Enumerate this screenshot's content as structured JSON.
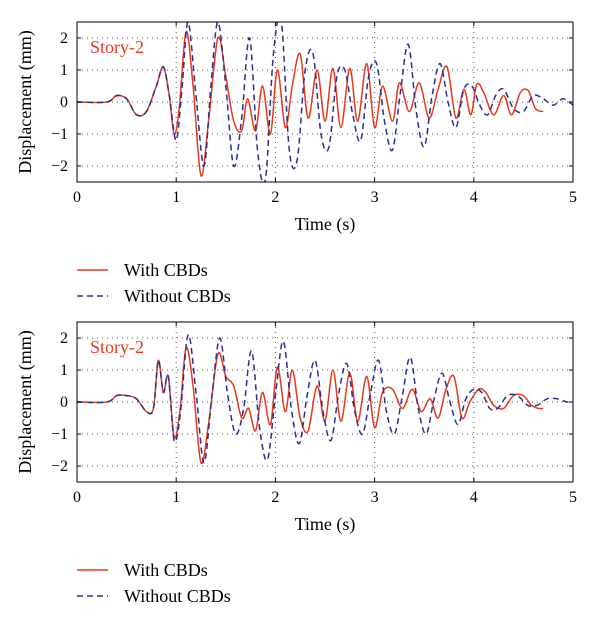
{
  "colors": {
    "with": "#e8381b",
    "without": "#2b2f8f",
    "grid": "#555555"
  },
  "chart_data": [
    {
      "type": "line",
      "xlabel": "Time (s)",
      "ylabel": "Displacement (mm)",
      "annotation": "Story-2",
      "xlim": [
        0,
        5
      ],
      "ylim": [
        -2.5,
        2.5
      ],
      "xticks": [
        "0",
        "1",
        "2",
        "3",
        "4",
        "5"
      ],
      "yticks": [
        "−2",
        "−1",
        "0",
        "1",
        "2"
      ],
      "grid": true,
      "legend": "below",
      "series": [
        {
          "name": "With CBDs",
          "style": "solid",
          "x": [
            0,
            0.3,
            0.4,
            0.5,
            0.6,
            0.7,
            0.8,
            0.87,
            0.93,
            0.98,
            1.03,
            1.1,
            1.17,
            1.25,
            1.33,
            1.42,
            1.5,
            1.58,
            1.66,
            1.72,
            1.8,
            1.87,
            1.95,
            2.02,
            2.1,
            2.17,
            2.25,
            2.33,
            2.42,
            2.5,
            2.58,
            2.66,
            2.75,
            2.83,
            2.92,
            3.0,
            3.08,
            3.18,
            3.25,
            3.35,
            3.45,
            3.55,
            3.64,
            3.73,
            3.82,
            3.9,
            3.97,
            4.03,
            4.1,
            4.2,
            4.3,
            4.38,
            4.47,
            4.55,
            4.62,
            4.7
          ],
          "y": [
            0,
            0,
            0.2,
            0.1,
            -0.4,
            -0.3,
            0.5,
            1.1,
            0.2,
            -1.0,
            -0.2,
            2.2,
            0.5,
            -2.3,
            -0.5,
            2.0,
            0.8,
            -0.6,
            -0.9,
            0.1,
            -0.9,
            0.5,
            -1.0,
            1.0,
            -0.8,
            0.5,
            1.5,
            -0.5,
            1.0,
            -0.6,
            1.05,
            -0.8,
            1.05,
            -0.6,
            1.2,
            -0.8,
            0.5,
            -0.6,
            0.6,
            -0.3,
            0.6,
            -0.5,
            0.4,
            1.1,
            -0.5,
            0.4,
            -0.4,
            0.55,
            0.3,
            -0.4,
            0.2,
            -0.4,
            0.3,
            0.35,
            -0.2,
            -0.3
          ]
        },
        {
          "name": "Without CBDs",
          "style": "dashed",
          "x": [
            0,
            0.3,
            0.4,
            0.5,
            0.6,
            0.7,
            0.8,
            0.87,
            0.93,
            1.0,
            1.06,
            1.12,
            1.2,
            1.28,
            1.35,
            1.42,
            1.5,
            1.58,
            1.66,
            1.74,
            1.82,
            1.9,
            1.98,
            2.06,
            2.14,
            2.22,
            2.3,
            2.38,
            2.46,
            2.54,
            2.62,
            2.7,
            2.78,
            2.86,
            2.94,
            3.02,
            3.1,
            3.18,
            3.26,
            3.34,
            3.42,
            3.5,
            3.58,
            3.66,
            3.74,
            3.82,
            3.9,
            3.98,
            4.06,
            4.14,
            4.22,
            4.3,
            4.4,
            4.5,
            4.6,
            4.7,
            4.8,
            4.9,
            5.0
          ],
          "y": [
            0,
            0,
            0.2,
            0.1,
            -0.4,
            -0.3,
            0.5,
            1.1,
            0.2,
            -1.2,
            0.5,
            2.5,
            0.2,
            -2.0,
            0.5,
            2.5,
            0.5,
            -2.0,
            -0.5,
            2.0,
            -1.5,
            -2.4,
            1.5,
            2.5,
            -1.5,
            -1.8,
            1.0,
            1.5,
            -1.0,
            -1.4,
            0.8,
            1.0,
            -0.4,
            -1.2,
            0.8,
            1.2,
            -0.6,
            -1.5,
            0.3,
            1.8,
            -0.3,
            -1.4,
            0.2,
            1.2,
            0.0,
            -0.8,
            0.4,
            0.5,
            -0.1,
            -0.4,
            0.2,
            0.4,
            -0.2,
            -0.3,
            0.2,
            0.1,
            -0.1,
            0.1,
            -0.1
          ]
        }
      ]
    },
    {
      "type": "line",
      "xlabel": "Time (s)",
      "ylabel": "Displacement (mm)",
      "annotation": "Story-2",
      "xlim": [
        0,
        5
      ],
      "ylim": [
        -2.5,
        2.5
      ],
      "xticks": [
        "0",
        "1",
        "2",
        "3",
        "4",
        "5"
      ],
      "yticks": [
        "−2",
        "−1",
        "0",
        "1",
        "2"
      ],
      "grid": true,
      "legend": "below",
      "series": [
        {
          "name": "With CBDs",
          "style": "solid",
          "x": [
            0,
            0.3,
            0.4,
            0.5,
            0.6,
            0.7,
            0.77,
            0.82,
            0.87,
            0.92,
            0.98,
            1.04,
            1.1,
            1.17,
            1.25,
            1.33,
            1.42,
            1.5,
            1.58,
            1.66,
            1.73,
            1.8,
            1.87,
            1.95,
            2.02,
            2.1,
            2.17,
            2.25,
            2.33,
            2.42,
            2.5,
            2.58,
            2.66,
            2.75,
            2.83,
            2.92,
            3.0,
            3.08,
            3.18,
            3.28,
            3.38,
            3.47,
            3.56,
            3.64,
            3.72,
            3.8,
            3.88,
            3.96,
            4.05,
            4.12,
            4.2,
            4.3,
            4.4,
            4.5,
            4.58,
            4.65,
            4.7
          ],
          "y": [
            0,
            0,
            0.2,
            0.2,
            0.1,
            -0.3,
            -0.2,
            1.3,
            0.3,
            0.8,
            -1.1,
            -0.2,
            1.7,
            0.5,
            -1.9,
            -0.6,
            1.5,
            0.8,
            0.5,
            -0.5,
            -0.2,
            -0.9,
            0.3,
            -0.7,
            1.1,
            -0.3,
            1.0,
            -0.5,
            -0.9,
            0.5,
            -0.6,
            1.0,
            -0.6,
            0.9,
            -0.6,
            0.8,
            -0.8,
            0.3,
            0.4,
            -0.2,
            0.4,
            -0.3,
            0.1,
            -0.5,
            0.4,
            0.8,
            -0.5,
            0.0,
            0.4,
            0.3,
            -0.1,
            -0.2,
            0.2,
            0.2,
            -0.1,
            -0.2,
            -0.2
          ]
        },
        {
          "name": "Without CBDs",
          "style": "dashed",
          "x": [
            0,
            0.3,
            0.4,
            0.5,
            0.6,
            0.7,
            0.77,
            0.82,
            0.87,
            0.92,
            0.98,
            1.04,
            1.12,
            1.2,
            1.28,
            1.36,
            1.44,
            1.52,
            1.6,
            1.68,
            1.76,
            1.84,
            1.92,
            2.0,
            2.08,
            2.16,
            2.24,
            2.32,
            2.4,
            2.48,
            2.56,
            2.64,
            2.72,
            2.8,
            2.88,
            2.96,
            3.04,
            3.12,
            3.2,
            3.28,
            3.36,
            3.44,
            3.52,
            3.6,
            3.68,
            3.76,
            3.84,
            3.92,
            4.0,
            4.08,
            4.16,
            4.24,
            4.34,
            4.44,
            4.54,
            4.64,
            4.74,
            4.84,
            4.94,
            5.0
          ],
          "y": [
            0,
            0,
            0.2,
            0.2,
            0.1,
            -0.3,
            -0.2,
            1.3,
            0.3,
            0.8,
            -1.2,
            -0.4,
            2.1,
            0.3,
            -1.9,
            0.2,
            2.0,
            0.2,
            -1.0,
            -0.2,
            1.6,
            -0.8,
            -1.8,
            0.2,
            1.9,
            -0.2,
            -1.3,
            0.2,
            1.3,
            -0.3,
            -1.2,
            0.3,
            1.2,
            -0.3,
            -1.0,
            0.3,
            1.3,
            -0.3,
            -1.0,
            0.2,
            1.4,
            -0.2,
            -1.0,
            0.1,
            0.9,
            0.0,
            -0.7,
            0.1,
            0.4,
            0.3,
            -0.2,
            -0.2,
            0.2,
            0.2,
            -0.1,
            -0.1,
            0.1,
            0.1,
            0.0,
            0.0
          ]
        }
      ]
    }
  ]
}
